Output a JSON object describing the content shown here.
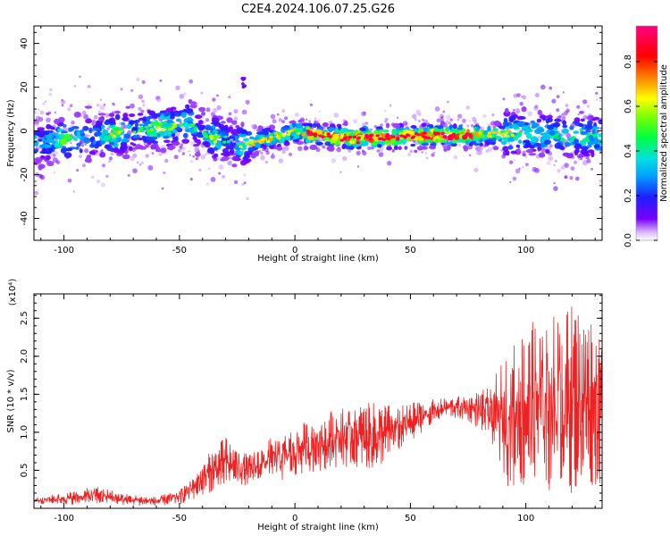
{
  "title": "C2E4.2024.106.07.25.G26",
  "colorbar": {
    "label": "Normalized spectral amplitude",
    "ticks": [
      "0.0",
      "0.2",
      "0.4",
      "0.6",
      "0.8"
    ],
    "tick_values": [
      0.0,
      0.2,
      0.4,
      0.6,
      0.8
    ],
    "range": [
      0,
      0.96
    ]
  },
  "colors": {
    "snr_line": "#ee2222",
    "background": "#ffffff",
    "axis": "#000000"
  },
  "chart_data": [
    {
      "type": "heatmap",
      "xlabel": "Height of straight line (km)",
      "ylabel": "Frequency (Hz)",
      "xlim": [
        -113,
        133
      ],
      "ylim": [
        -50,
        48
      ],
      "x_ticks": [
        "-100",
        "-50",
        "0",
        "50",
        "100"
      ],
      "x_tick_values": [
        -100,
        -50,
        0,
        50,
        100
      ],
      "y_ticks": [
        "40",
        "20",
        "0",
        "-20",
        "-40"
      ],
      "y_tick_values": [
        40,
        20,
        0,
        -20,
        -40
      ],
      "centerline": [
        [
          -113,
          -5
        ],
        [
          -90,
          -3
        ],
        [
          -70,
          0
        ],
        [
          -55,
          2
        ],
        [
          -45,
          4
        ],
        [
          -42,
          0
        ],
        [
          -35,
          -3
        ],
        [
          -28,
          -5
        ],
        [
          -22,
          -7
        ],
        [
          -15,
          -4
        ],
        [
          -5,
          -2
        ],
        [
          0,
          0
        ],
        [
          10,
          -2
        ],
        [
          25,
          -3
        ],
        [
          40,
          -3
        ],
        [
          60,
          -2
        ],
        [
          80,
          -2
        ],
        [
          100,
          -1
        ],
        [
          115,
          -2
        ],
        [
          133,
          -3
        ]
      ],
      "features": [
        {
          "x": -22,
          "y": 23,
          "note": "isolated blob"
        }
      ]
    },
    {
      "type": "line",
      "xlabel": "Height of straight line (km)",
      "ylabel": "SNR (10 * v/v)",
      "y_multiplier": "(x10⁴)",
      "xlim": [
        -113,
        133
      ],
      "ylim": [
        0,
        2.82
      ],
      "x_ticks": [
        "-100",
        "-50",
        "0",
        "50",
        "100"
      ],
      "x_tick_values": [
        -100,
        -50,
        0,
        50,
        100
      ],
      "y_ticks": [
        "0.5",
        "1.0",
        "1.5",
        "2.0",
        "2.5"
      ],
      "y_tick_values": [
        0.5,
        1.0,
        1.5,
        2.0,
        2.5
      ],
      "series": [
        {
          "envelope": [
            [
              -113,
              0.06,
              0.15
            ],
            [
              -100,
              0.05,
              0.2
            ],
            [
              -85,
              0.05,
              0.3
            ],
            [
              -75,
              0.04,
              0.2
            ],
            [
              -60,
              0.03,
              0.15
            ],
            [
              -50,
              0.05,
              0.25
            ],
            [
              -45,
              0.1,
              0.4
            ],
            [
              -38,
              0.2,
              0.7
            ],
            [
              -30,
              0.25,
              0.95
            ],
            [
              -25,
              0.3,
              0.8
            ],
            [
              -20,
              0.3,
              0.7
            ],
            [
              -12,
              0.35,
              0.9
            ],
            [
              -5,
              0.35,
              1.0
            ],
            [
              5,
              0.45,
              1.15
            ],
            [
              15,
              0.5,
              1.3
            ],
            [
              25,
              0.55,
              1.35
            ],
            [
              35,
              0.5,
              1.4
            ],
            [
              45,
              0.75,
              1.35
            ],
            [
              55,
              1.0,
              1.42
            ],
            [
              65,
              1.2,
              1.45
            ],
            [
              75,
              1.15,
              1.5
            ],
            [
              85,
              0.9,
              1.6
            ],
            [
              90,
              0.3,
              2.0
            ],
            [
              100,
              0.2,
              2.4
            ],
            [
              110,
              0.2,
              2.6
            ],
            [
              120,
              0.2,
              2.7
            ],
            [
              133,
              0.3,
              2.5
            ]
          ]
        }
      ]
    }
  ]
}
